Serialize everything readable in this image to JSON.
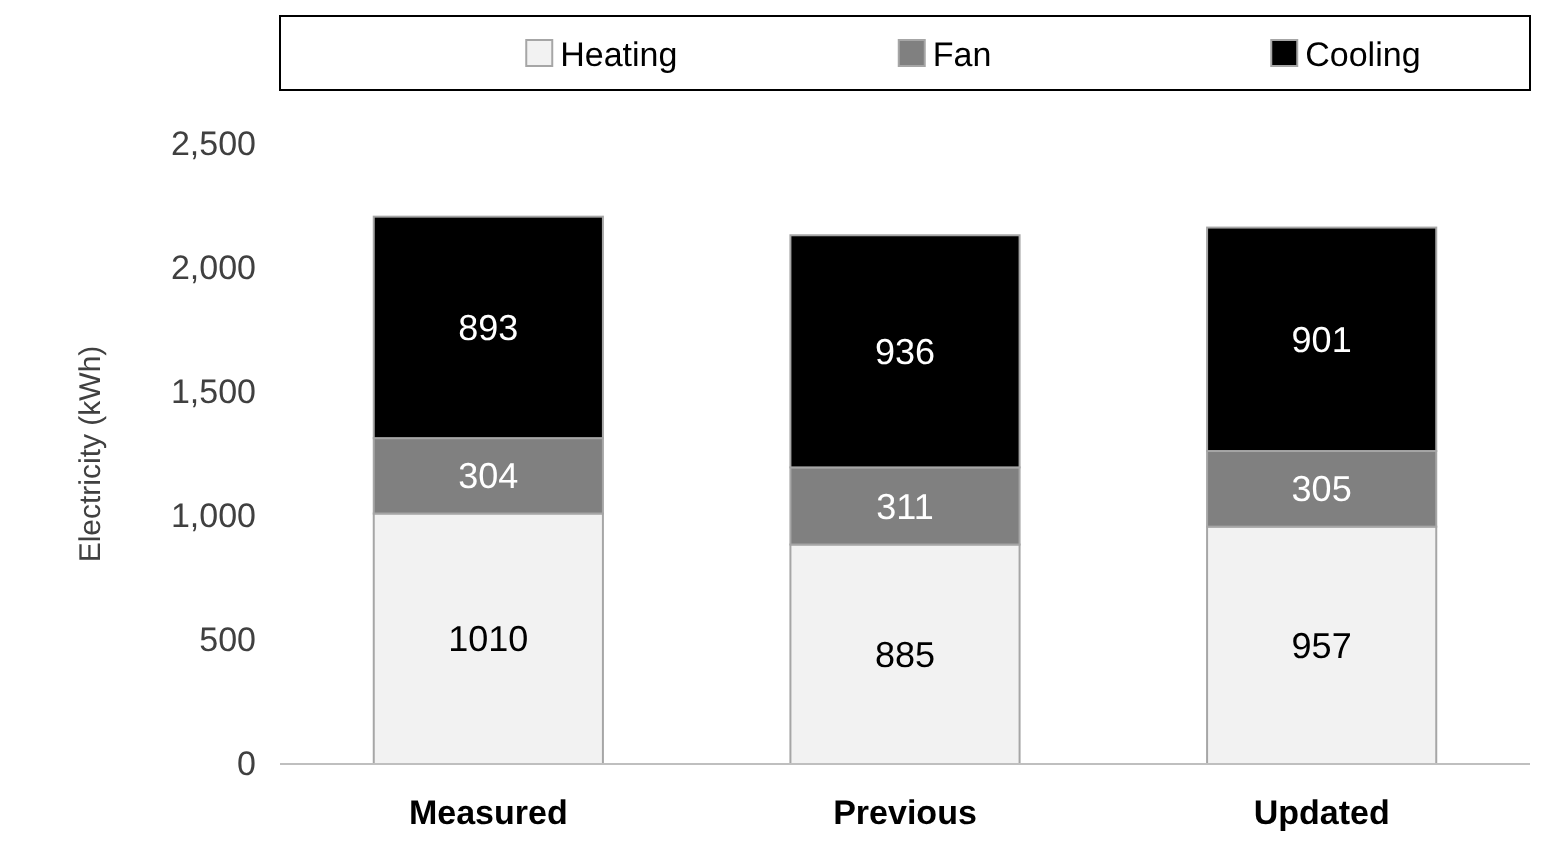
{
  "chart_data": {
    "type": "bar",
    "stacked": true,
    "ylabel": "Electricity (kWh)",
    "categories": [
      "Measured",
      "Previous",
      "Updated"
    ],
    "series": [
      {
        "name": "Heating",
        "color": "#f2f2f2",
        "values": [
          1010,
          885,
          957
        ]
      },
      {
        "name": "Fan",
        "color": "#808080",
        "values": [
          304,
          311,
          305
        ]
      },
      {
        "name": "Cooling",
        "color": "#000000",
        "values": [
          893,
          936,
          901
        ]
      }
    ],
    "ylim": [
      0,
      2500
    ],
    "yticks": [
      0,
      {
        "value": 500,
        "label": "500"
      },
      {
        "value": 1000,
        "label": "1,000"
      },
      {
        "value": 1500,
        "label": "1,500"
      },
      {
        "value": 2000,
        "label": "2,000"
      },
      {
        "value": 2500,
        "label": "2,500"
      }
    ],
    "data_labels": true,
    "legend": "top",
    "grid": false
  }
}
